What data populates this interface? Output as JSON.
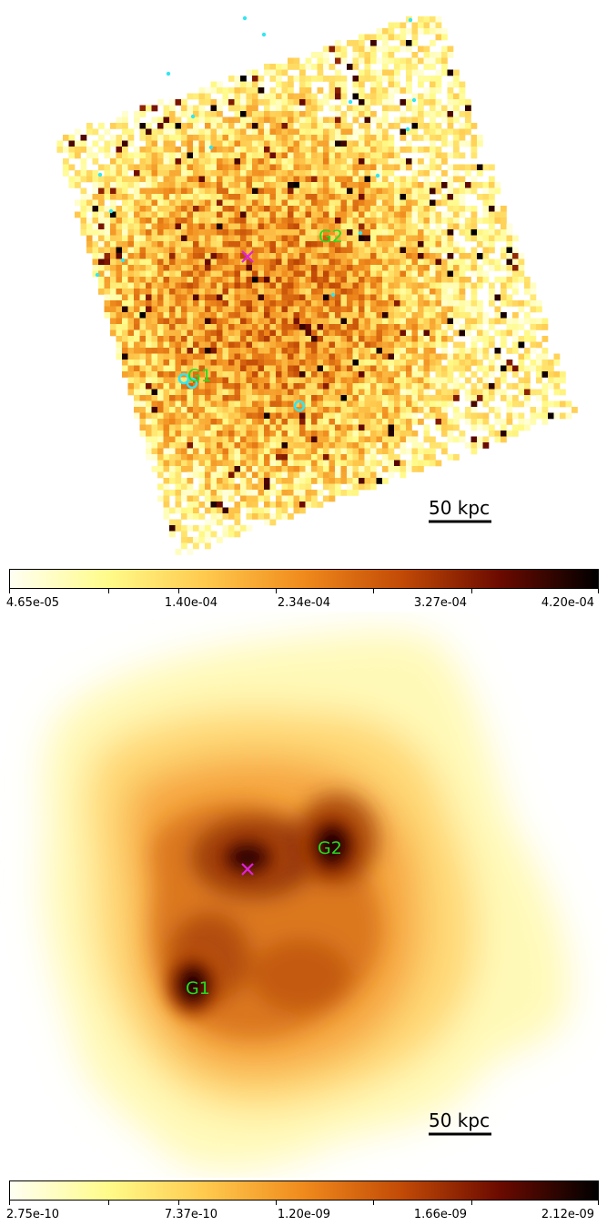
{
  "panels": [
    {
      "id": "raw",
      "scalebar_label": "50 kpc",
      "labels": {
        "g1": "G1",
        "g2": "G2"
      },
      "colorbar": {
        "ticks": [
          "4.65e-05",
          "1.40e-04",
          "2.34e-04",
          "3.27e-04",
          "4.20e-04"
        ],
        "colormap": [
          "#fffff2",
          "#fffb8a",
          "#ffc94d",
          "#f08a1c",
          "#c24a06",
          "#6b0a00",
          "#000000"
        ]
      }
    },
    {
      "id": "smoothed",
      "scalebar_label": "50 kpc",
      "labels": {
        "g1": "G1",
        "g2": "G2"
      },
      "colorbar": {
        "ticks": [
          "2.75e-10",
          "7.37e-10",
          "1.20e-09",
          "1.66e-09",
          "2.12e-09"
        ],
        "colormap": [
          "#fffff2",
          "#fffb8a",
          "#ffc94d",
          "#f08a1c",
          "#c24a06",
          "#6b0a00",
          "#000000"
        ]
      }
    }
  ],
  "colors": {
    "label_green": "#22dd22",
    "cross_magenta": "#e020e0",
    "point_cyan": "#33e6f0"
  }
}
